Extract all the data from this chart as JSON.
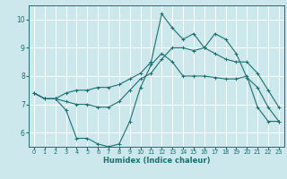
{
  "xlabel": "Humidex (Indice chaleur)",
  "xlim": [
    -0.5,
    23.5
  ],
  "ylim": [
    5.5,
    10.5
  ],
  "yticks": [
    6,
    7,
    8,
    9,
    10
  ],
  "xticks": [
    0,
    1,
    2,
    3,
    4,
    5,
    6,
    7,
    8,
    9,
    10,
    11,
    12,
    13,
    14,
    15,
    16,
    17,
    18,
    19,
    20,
    21,
    22,
    23
  ],
  "bg_color": "#cce8ec",
  "line_color": "#1a7070",
  "grid_color": "#ffffff",
  "series": {
    "line1_x": [
      0,
      1,
      2,
      3,
      4,
      5,
      6,
      7,
      8,
      9,
      10,
      11,
      12,
      13,
      14,
      15,
      16,
      17,
      18,
      19,
      20,
      21,
      22,
      23
    ],
    "line1_y": [
      7.4,
      7.2,
      7.2,
      6.8,
      5.8,
      5.8,
      5.6,
      5.5,
      5.6,
      6.4,
      7.6,
      8.4,
      8.8,
      8.5,
      8.0,
      8.0,
      8.0,
      7.95,
      7.9,
      7.9,
      8.0,
      6.9,
      6.4,
      6.4
    ],
    "line2_x": [
      0,
      1,
      2,
      3,
      4,
      5,
      6,
      7,
      8,
      9,
      10,
      11,
      12,
      13,
      14,
      15,
      16,
      17,
      18,
      19,
      20,
      21,
      22,
      23
    ],
    "line2_y": [
      7.4,
      7.2,
      7.2,
      7.1,
      7.0,
      7.0,
      6.9,
      6.9,
      7.1,
      7.5,
      7.9,
      8.1,
      8.6,
      9.0,
      9.0,
      8.9,
      9.0,
      8.8,
      8.6,
      8.5,
      8.5,
      8.1,
      7.5,
      6.9
    ],
    "line3_x": [
      0,
      1,
      2,
      3,
      4,
      5,
      6,
      7,
      8,
      9,
      10,
      11,
      12,
      13,
      14,
      15,
      16,
      17,
      18,
      19,
      20,
      21,
      22,
      23
    ],
    "line3_y": [
      7.4,
      7.2,
      7.2,
      7.4,
      7.5,
      7.5,
      7.6,
      7.6,
      7.7,
      7.9,
      8.1,
      8.5,
      10.2,
      9.7,
      9.3,
      9.5,
      9.0,
      9.5,
      9.3,
      8.8,
      7.95,
      7.6,
      6.9,
      6.4
    ]
  }
}
